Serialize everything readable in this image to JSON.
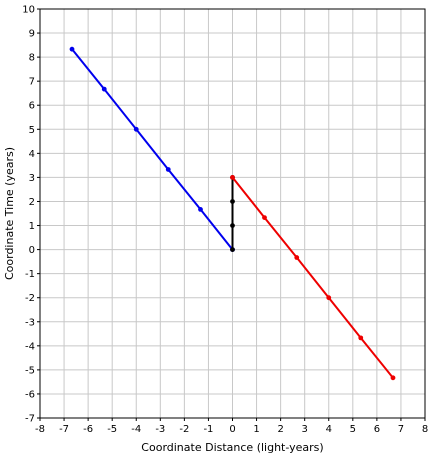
{
  "chart_data": {
    "type": "line",
    "title": "",
    "xlabel": "Coordinate Distance (light-years)",
    "ylabel": "Coordinate Time (years)",
    "xlim": [
      -8,
      8
    ],
    "ylim": [
      -7,
      10
    ],
    "x_ticks": [
      -8,
      -7,
      -6,
      -5,
      -4,
      -3,
      -2,
      -1,
      0,
      1,
      2,
      3,
      4,
      5,
      6,
      7,
      8
    ],
    "y_ticks": [
      -7,
      -6,
      -5,
      -4,
      -3,
      -2,
      -1,
      0,
      1,
      2,
      3,
      4,
      5,
      6,
      7,
      8,
      9,
      10
    ],
    "grid": true,
    "series": [
      {
        "color": "#0000ee",
        "x": [
          0,
          -1.33,
          -2.67,
          -4.0,
          -5.33,
          -6.67
        ],
        "y": [
          0,
          1.67,
          3.33,
          5.0,
          6.67,
          8.33
        ]
      },
      {
        "color": "#000000",
        "x": [
          0,
          0,
          0,
          0
        ],
        "y": [
          0,
          1,
          2,
          3
        ]
      },
      {
        "color": "#ee0000",
        "x": [
          0,
          1.33,
          2.67,
          4.0,
          5.33,
          6.67
        ],
        "y": [
          3,
          1.33,
          -0.33,
          -2.0,
          -3.67,
          -5.33
        ]
      }
    ]
  }
}
